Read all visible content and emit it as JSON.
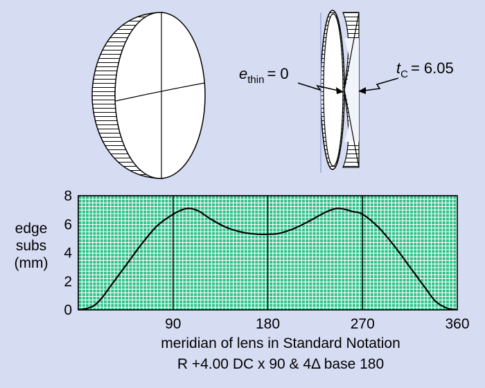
{
  "colors": {
    "background": "#d6dcf2",
    "plot_fill": "#2fc18a",
    "grid_line": "#ffffff",
    "curve": "#000000",
    "lens_face": "#ffffff",
    "lens_side_face": "#f2f4fb"
  },
  "lens_front": {
    "hatch": "horizontal-lines"
  },
  "lens_side": {
    "e_thin_symbol": "e",
    "e_thin_subscript": "thin",
    "e_thin_value": "= 0",
    "tc_symbol": "t",
    "tc_subscript": "C",
    "tc_value": "= 6.05"
  },
  "chart_data": {
    "type": "line",
    "ylabel_lines": [
      "edge",
      "subs",
      "(mm)"
    ],
    "xlabel_lines": [
      "meridian of lens in Standard Notation",
      "R +4.00 DC x 90 & 4Δ base 180"
    ],
    "xlim": [
      0,
      360
    ],
    "ylim": [
      0,
      8
    ],
    "x_ticks": [
      90,
      180,
      270,
      360
    ],
    "x_tick_labels": [
      "90",
      "180",
      "270",
      "360"
    ],
    "y_ticks": [
      0,
      2,
      4,
      6,
      8
    ],
    "y_tick_labels": [
      "0",
      "2",
      "4",
      "6",
      "8"
    ],
    "major_vlines": [
      90,
      180,
      270
    ],
    "grid": true,
    "series": [
      {
        "x": [
          0,
          8,
          15,
          22,
          30,
          45,
          60,
          75,
          90,
          100,
          107,
          115,
          125,
          140,
          155,
          170,
          180,
          190,
          205,
          220,
          235,
          245,
          253,
          260,
          270,
          285,
          300,
          315,
          330,
          338,
          345,
          352,
          360
        ],
        "y": [
          0,
          0.1,
          0.3,
          0.8,
          1.6,
          3.1,
          4.6,
          5.9,
          6.7,
          7.05,
          7.1,
          6.9,
          6.4,
          5.8,
          5.45,
          5.3,
          5.3,
          5.35,
          5.7,
          6.25,
          6.85,
          7.1,
          7.05,
          6.9,
          6.7,
          5.8,
          4.5,
          3.0,
          1.5,
          0.7,
          0.3,
          0.08,
          0
        ]
      }
    ]
  }
}
